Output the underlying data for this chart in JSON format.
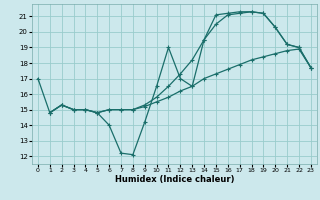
{
  "bg_color": "#cce8ec",
  "grid_color": "#99cccc",
  "line_color": "#1a6e6a",
  "xlabel": "Humidex (Indice chaleur)",
  "xlim": [
    -0.5,
    23.5
  ],
  "ylim": [
    11.5,
    21.8
  ],
  "yticks": [
    12,
    13,
    14,
    15,
    16,
    17,
    18,
    19,
    20,
    21
  ],
  "xticks": [
    0,
    1,
    2,
    3,
    4,
    5,
    6,
    7,
    8,
    9,
    10,
    11,
    12,
    13,
    14,
    15,
    16,
    17,
    18,
    19,
    20,
    21,
    22,
    23
  ],
  "line1_x": [
    0,
    1,
    2,
    3,
    4,
    5,
    6,
    7,
    8,
    9,
    10,
    11,
    12,
    13,
    14,
    15,
    16,
    17,
    18,
    19,
    20,
    21,
    22,
    23
  ],
  "line1_y": [
    17.0,
    14.8,
    15.3,
    15.0,
    15.0,
    14.8,
    14.0,
    12.2,
    12.1,
    14.2,
    16.5,
    19.0,
    17.0,
    16.5,
    19.5,
    20.5,
    21.1,
    21.2,
    21.3,
    21.2,
    20.3,
    19.2,
    19.0,
    17.7
  ],
  "line2_x": [
    1,
    2,
    3,
    4,
    5,
    6,
    7,
    8,
    9,
    10,
    11,
    12,
    13,
    14,
    15,
    16,
    17,
    18,
    19,
    20,
    21,
    22,
    23
  ],
  "line2_y": [
    14.8,
    15.3,
    15.0,
    15.0,
    14.8,
    15.0,
    15.0,
    15.0,
    15.2,
    15.5,
    15.8,
    16.2,
    16.5,
    17.0,
    17.3,
    17.6,
    17.9,
    18.2,
    18.4,
    18.6,
    18.8,
    18.9,
    17.7
  ],
  "line3_x": [
    1,
    2,
    3,
    4,
    5,
    6,
    7,
    8,
    9,
    10,
    11,
    12,
    13,
    14,
    15,
    16,
    17,
    18,
    19,
    20,
    21,
    22,
    23
  ],
  "line3_y": [
    14.8,
    15.3,
    15.0,
    15.0,
    14.8,
    15.0,
    15.0,
    15.0,
    15.3,
    15.8,
    16.5,
    17.3,
    18.2,
    19.5,
    21.1,
    21.2,
    21.3,
    21.3,
    21.2,
    20.3,
    19.2,
    19.0,
    17.7
  ]
}
